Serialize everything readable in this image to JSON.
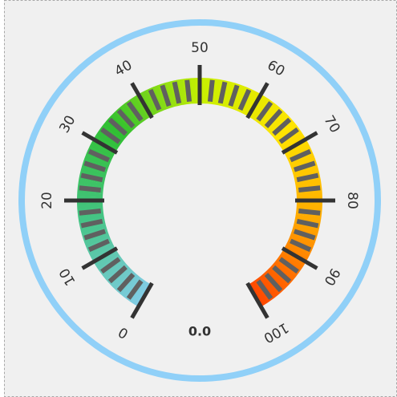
{
  "chart_data": {
    "type": "gauge",
    "value": 0,
    "value_label": "0.0",
    "ylim": [
      0,
      100
    ],
    "yticks": [
      0,
      10,
      20,
      30,
      40,
      50,
      60,
      70,
      80,
      90,
      100
    ],
    "minor_step": 2,
    "color_stops": [
      "#80cce4",
      "#44c484",
      "#30c030",
      "#c8f000",
      "#ffe400",
      "#ffa800",
      "#ff4400"
    ],
    "ring_color": "#90d0f8"
  }
}
